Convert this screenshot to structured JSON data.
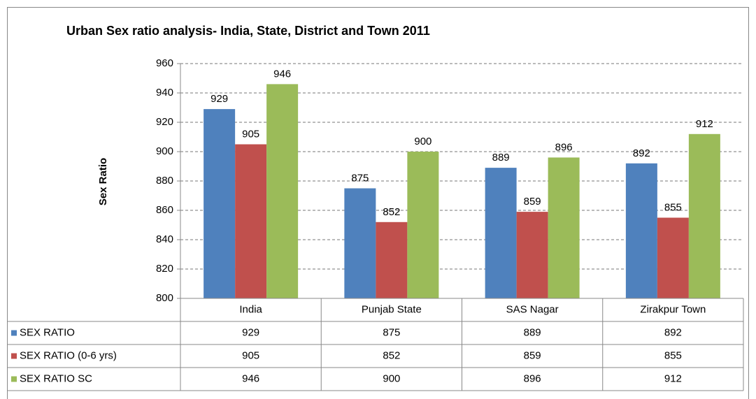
{
  "chart_data": {
    "type": "bar",
    "title": "Urban Sex ratio analysis- India, State, District and Town 2011",
    "y_axis_label": "Sex Ratio",
    "categories": [
      "India",
      "Punjab State",
      "SAS Nagar",
      "Zirakpur Town"
    ],
    "series": [
      {
        "name": "SEX RATIO",
        "color": "#4f81bd",
        "values": [
          929,
          875,
          889,
          892
        ]
      },
      {
        "name": "SEX RATIO (0-6 yrs)",
        "color": "#c0504d",
        "values": [
          905,
          852,
          859,
          855
        ]
      },
      {
        "name": "SEX RATIO SC",
        "color": "#9bbb59",
        "values": [
          946,
          900,
          896,
          912
        ]
      }
    ],
    "ylim": [
      800,
      960
    ],
    "yticks": [
      800,
      820,
      840,
      860,
      880,
      900,
      920,
      940,
      960
    ],
    "grid": true,
    "data_table": true
  }
}
